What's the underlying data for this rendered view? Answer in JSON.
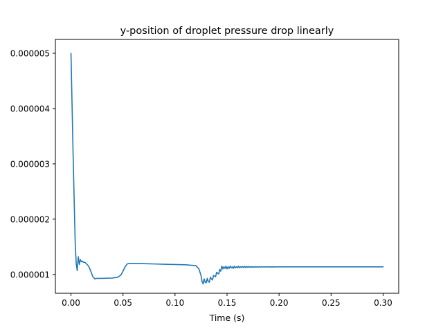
{
  "chart_data": {
    "type": "line",
    "title": "y-position of droplet pressure drop linearly",
    "xlabel": "Time (s)",
    "ylabel": "",
    "xlim": [
      -0.015,
      0.315
    ],
    "ylim": [
      6.6e-07,
      5.25e-06
    ],
    "xticks": [
      0.0,
      0.05,
      0.1,
      0.15,
      0.2,
      0.25,
      0.3
    ],
    "xtick_labels": [
      "0.00",
      "0.05",
      "0.10",
      "0.15",
      "0.20",
      "0.25",
      "0.30"
    ],
    "yticks": [
      1e-06,
      2e-06,
      3e-06,
      4e-06,
      5e-06
    ],
    "ytick_labels": [
      "0.000001",
      "0.000002",
      "0.000003",
      "0.000004",
      "0.000005"
    ],
    "grid": false,
    "legend": "none",
    "color": "#1f77b4",
    "series": [
      {
        "x": [
          0.0,
          0.001,
          0.002,
          0.003,
          0.004,
          0.005,
          0.006,
          0.0065,
          0.007,
          0.0075,
          0.008,
          0.009,
          0.01,
          0.011,
          0.012,
          0.013,
          0.014,
          0.015,
          0.017,
          0.019,
          0.021,
          0.023,
          0.025,
          0.03,
          0.04,
          0.045,
          0.048,
          0.05,
          0.052,
          0.054,
          0.056,
          0.06,
          0.07,
          0.08,
          0.09,
          0.1,
          0.11,
          0.12,
          0.123,
          0.125,
          0.126,
          0.127,
          0.128,
          0.129,
          0.13,
          0.131,
          0.132,
          0.133,
          0.134,
          0.135,
          0.136,
          0.137,
          0.138,
          0.139,
          0.14,
          0.141,
          0.142,
          0.143,
          0.144,
          0.145,
          0.146,
          0.147,
          0.148,
          0.149,
          0.15,
          0.151,
          0.152,
          0.153,
          0.154,
          0.155,
          0.156,
          0.157,
          0.158,
          0.159,
          0.16,
          0.161,
          0.162,
          0.163,
          0.164,
          0.165,
          0.166,
          0.167,
          0.168,
          0.169,
          0.17,
          0.171,
          0.172,
          0.173,
          0.174,
          0.175,
          0.176,
          0.177,
          0.178,
          0.179,
          0.18,
          0.181,
          0.182,
          0.183,
          0.184,
          0.185,
          0.186,
          0.187,
          0.188,
          0.189,
          0.19,
          0.191,
          0.192,
          0.193,
          0.194,
          0.195,
          0.196,
          0.197,
          0.198,
          0.199,
          0.2,
          0.205,
          0.21,
          0.22,
          0.25,
          0.3
        ],
        "y": [
          5e-06,
          4.1e-06,
          3.2e-06,
          2.4e-06,
          1.6e-06,
          1.2e-06,
          1.07e-06,
          1.2e-06,
          1.32e-06,
          1.25e-06,
          1.18e-06,
          1.27e-06,
          1.23e-06,
          1.24e-06,
          1.22e-06,
          1.22e-06,
          1.21e-06,
          1.19e-06,
          1.15e-06,
          1.06e-06,
          9.6e-07,
          9.2e-07,
          9.3e-07,
          9.3e-07,
          9.35e-07,
          9.5e-07,
          9.9e-07,
          1.06e-06,
          1.14e-06,
          1.19e-06,
          1.2e-06,
          1.2e-06,
          1.195e-06,
          1.19e-06,
          1.185e-06,
          1.18e-06,
          1.175e-06,
          1.16e-06,
          1.1e-06,
          9.8e-07,
          8.7e-07,
          8.3e-07,
          9.2e-07,
          8.6e-07,
          8.5e-07,
          9.3e-07,
          8.7e-07,
          8.6e-07,
          9.5e-07,
          9.2e-07,
          9e-07,
          9.8e-07,
          9.7e-07,
          9.6e-07,
          1.04e-06,
          1.02e-06,
          1.01e-06,
          1.09e-06,
          1.06e-06,
          1.15e-06,
          1.1e-06,
          1.14e-06,
          1.11e-06,
          1.15e-06,
          1.1e-06,
          1.14e-06,
          1.11e-06,
          1.15e-06,
          1.12e-06,
          1.14e-06,
          1.11e-06,
          1.15e-06,
          1.12e-06,
          1.14e-06,
          1.12e-06,
          1.15e-06,
          1.12e-06,
          1.14e-06,
          1.125e-06,
          1.145e-06,
          1.125e-06,
          1.145e-06,
          1.125e-06,
          1.145e-06,
          1.128e-06,
          1.145e-06,
          1.128e-06,
          1.143e-06,
          1.129e-06,
          1.143e-06,
          1.13e-06,
          1.142e-06,
          1.131e-06,
          1.142e-06,
          1.132e-06,
          1.141e-06,
          1.133e-06,
          1.14e-06,
          1.134e-06,
          1.14e-06,
          1.134e-06,
          1.139e-06,
          1.135e-06,
          1.139e-06,
          1.135e-06,
          1.138e-06,
          1.136e-06,
          1.138e-06,
          1.136e-06,
          1.137e-06,
          1.136e-06,
          1.137e-06,
          1.137e-06,
          1.137e-06,
          1.137e-06,
          1.137e-06,
          1.137e-06,
          1.137e-06,
          1.137e-06,
          1.137e-06
        ]
      }
    ]
  }
}
